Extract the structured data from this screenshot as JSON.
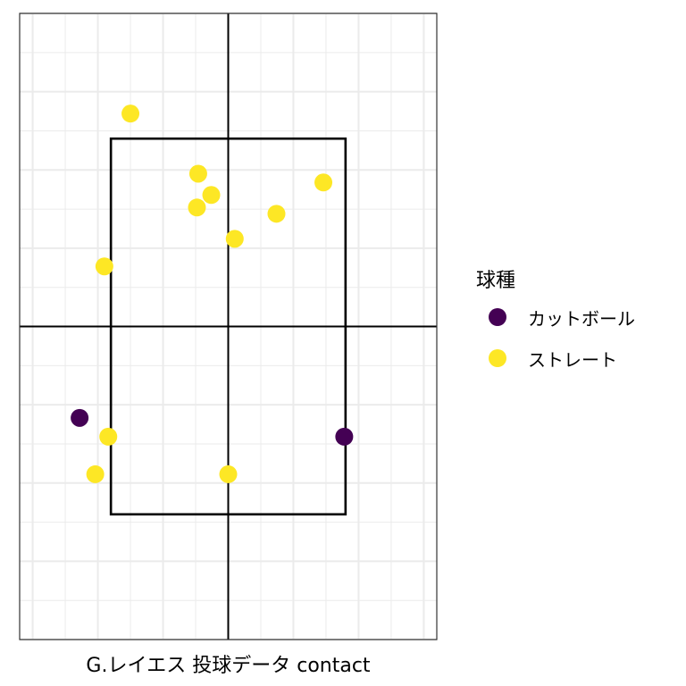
{
  "chart_data": {
    "type": "scatter",
    "title": "",
    "xlabel": "G.レイエス 投球データ contact",
    "ylabel": "",
    "xlim": [
      -1.6,
      1.6
    ],
    "ylim": [
      0.0,
      5.0
    ],
    "grid": true,
    "legend_position": "right",
    "legend_title": "球種",
    "strike_zone": {
      "x": [
        -0.9,
        0.9
      ],
      "y": [
        1.0,
        4.0
      ]
    },
    "reference_lines": {
      "x": 0.0,
      "y": 2.5
    },
    "series": [
      {
        "name": "カットボール",
        "color": "#440154",
        "points": [
          [
            -1.14,
            1.77
          ],
          [
            0.89,
            1.62
          ]
        ]
      },
      {
        "name": "ストレート",
        "color": "#FDE725",
        "points": [
          [
            -0.75,
            4.2
          ],
          [
            -0.23,
            3.72
          ],
          [
            -0.13,
            3.55
          ],
          [
            -0.24,
            3.45
          ],
          [
            0.37,
            3.4
          ],
          [
            0.73,
            3.65
          ],
          [
            0.05,
            3.2
          ],
          [
            -0.95,
            2.98
          ],
          [
            -0.92,
            1.62
          ],
          [
            -1.02,
            1.32
          ],
          [
            0.0,
            1.32
          ]
        ]
      }
    ]
  }
}
